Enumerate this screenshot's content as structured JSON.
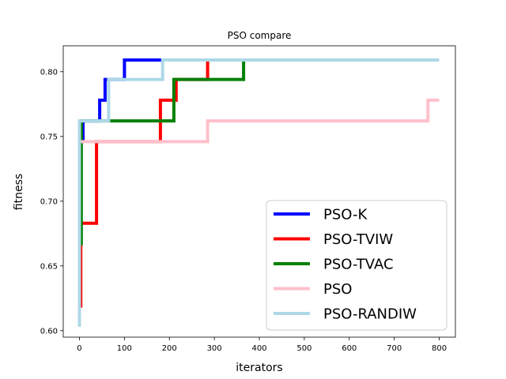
{
  "chart_data": {
    "type": "line",
    "title": "PSO compare",
    "xlabel": "iterators",
    "ylabel": "fitness",
    "xlim": [
      -36,
      836
    ],
    "ylim": [
      0.595,
      0.82
    ],
    "xticks": [
      0,
      100,
      200,
      300,
      400,
      500,
      600,
      700,
      800
    ],
    "yticks": [
      0.6,
      0.65,
      0.7,
      0.75,
      0.8
    ],
    "ytick_labels": [
      "0.60",
      "0.65",
      "0.70",
      "0.75",
      "0.80"
    ],
    "grid": false,
    "legend_position": "lower-right",
    "series": [
      {
        "name": "PSO-K",
        "color": "#0000ff",
        "x": [
          0,
          0,
          2,
          2,
          8,
          8,
          16,
          16,
          45,
          45,
          57,
          57,
          100,
          100,
          800
        ],
        "y": [
          0.699,
          0.699,
          0.699,
          0.748,
          0.748,
          0.762,
          0.762,
          0.762,
          0.762,
          0.778,
          0.778,
          0.794,
          0.794,
          0.809,
          0.809
        ]
      },
      {
        "name": "PSO-TVIW",
        "color": "#ff0000",
        "x": [
          0,
          0,
          3,
          3,
          11,
          11,
          38,
          38,
          165,
          165,
          180,
          180,
          215,
          215,
          285,
          285,
          800
        ],
        "y": [
          0.619,
          0.619,
          0.619,
          0.683,
          0.683,
          0.683,
          0.683,
          0.746,
          0.746,
          0.746,
          0.746,
          0.778,
          0.778,
          0.794,
          0.794,
          0.809,
          0.809
        ]
      },
      {
        "name": "PSO-TVAC",
        "color": "#008000",
        "x": [
          0,
          0,
          4,
          4,
          10,
          10,
          65,
          65,
          210,
          210,
          365,
          365,
          800
        ],
        "y": [
          0.667,
          0.667,
          0.667,
          0.762,
          0.762,
          0.762,
          0.762,
          0.762,
          0.762,
          0.794,
          0.794,
          0.809,
          0.809
        ]
      },
      {
        "name": "PSO",
        "color": "#ffc0cb",
        "x": [
          0,
          0,
          285,
          285,
          775,
          775,
          800
        ],
        "y": [
          0.746,
          0.746,
          0.746,
          0.762,
          0.762,
          0.778,
          0.778
        ]
      },
      {
        "name": "PSO-RANDIW",
        "color": "#add8e6",
        "x": [
          0,
          0,
          0,
          0,
          65,
          65,
          185,
          185,
          800
        ],
        "y": [
          0.603,
          0.603,
          0.603,
          0.762,
          0.762,
          0.794,
          0.794,
          0.809,
          0.809
        ]
      }
    ]
  }
}
